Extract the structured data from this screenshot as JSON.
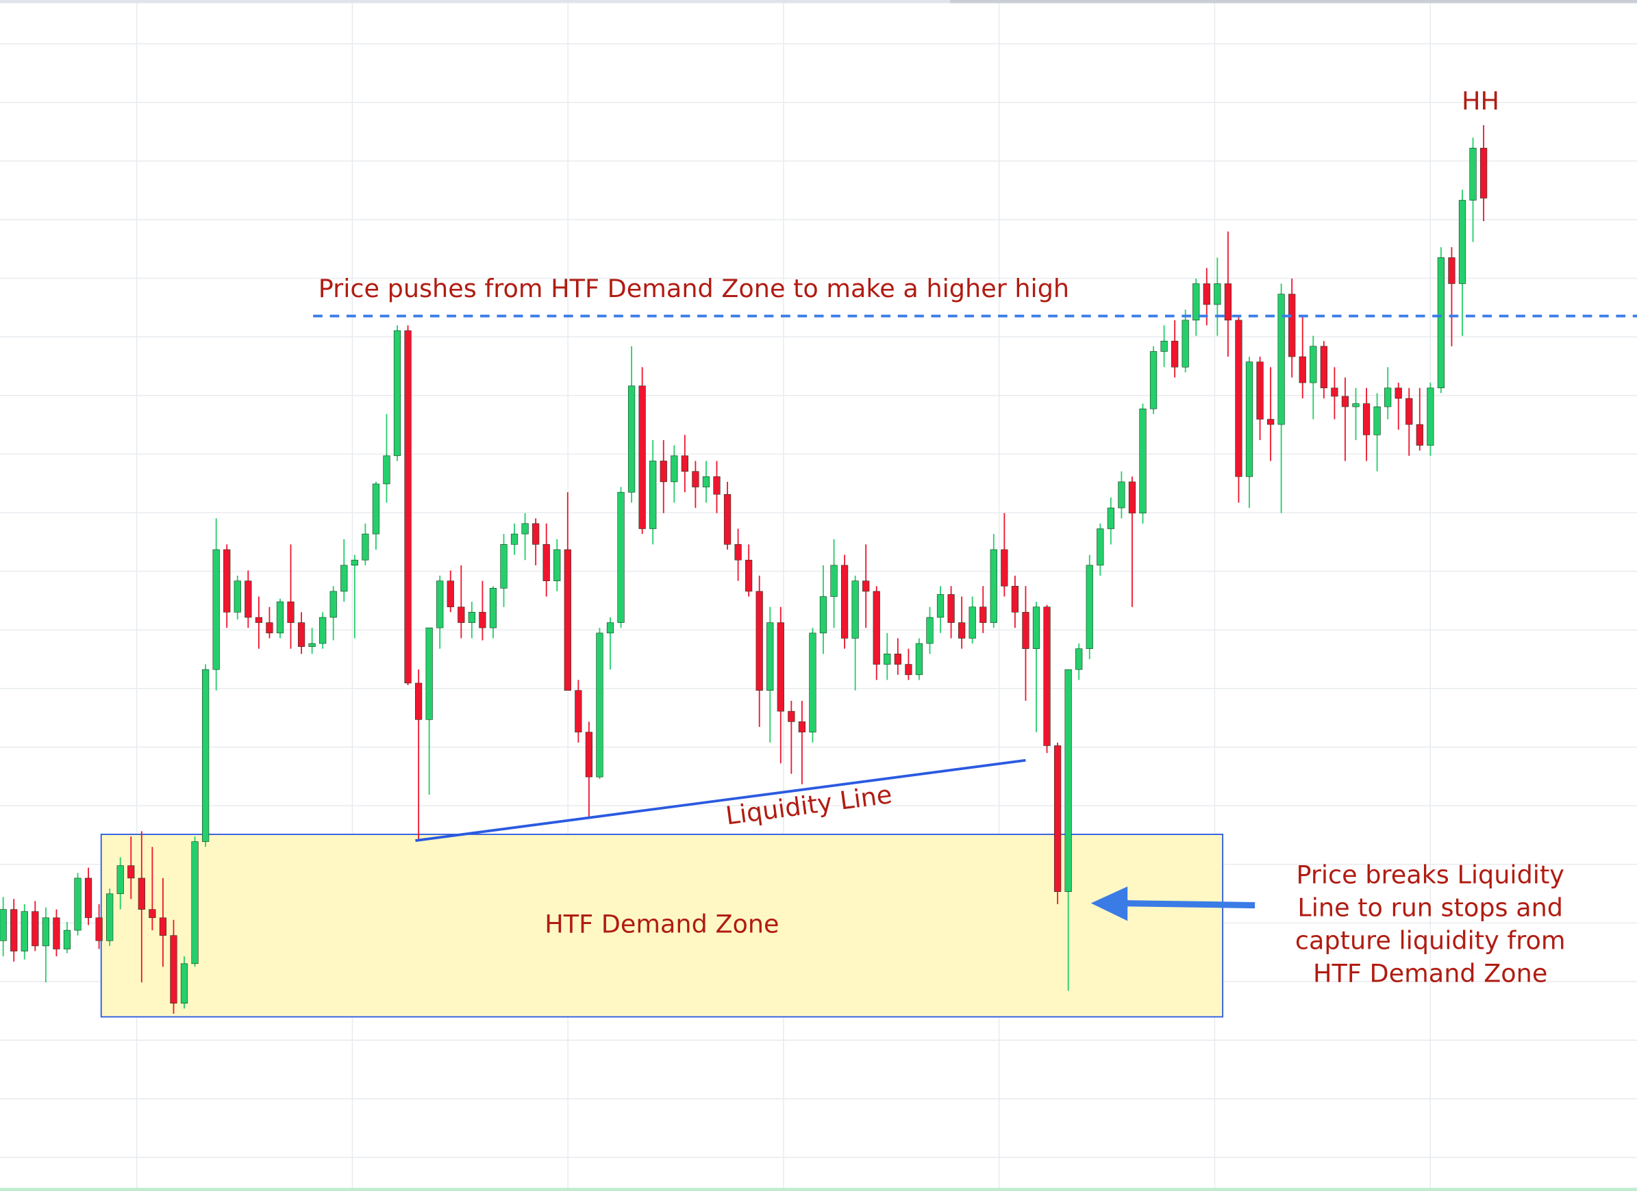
{
  "chart_data": {
    "type": "candlestick",
    "up_color": "#25cf6b",
    "down_color": "#f0152e",
    "ylim": [
      0,
      1142
    ],
    "xlim": [
      -0.3,
      153.4
    ],
    "grid": true,
    "candles": [
      [
        240,
        282,
        225,
        270
      ],
      [
        270,
        280,
        220,
        230
      ],
      [
        230,
        275,
        222,
        268
      ],
      [
        268,
        278,
        230,
        235
      ],
      [
        235,
        272,
        200,
        262
      ],
      [
        262,
        270,
        225,
        232
      ],
      [
        232,
        258,
        228,
        250
      ],
      [
        250,
        305,
        245,
        300
      ],
      [
        300,
        310,
        255,
        262
      ],
      [
        262,
        275,
        232,
        240
      ],
      [
        240,
        290,
        235,
        285
      ],
      [
        285,
        320,
        270,
        312
      ],
      [
        312,
        340,
        280,
        300
      ],
      [
        300,
        345,
        200,
        270
      ],
      [
        270,
        330,
        250,
        262
      ],
      [
        262,
        300,
        215,
        245
      ],
      [
        245,
        260,
        170,
        180
      ],
      [
        180,
        225,
        175,
        218
      ],
      [
        218,
        340,
        215,
        335
      ],
      [
        335,
        505,
        330,
        500
      ],
      [
        500,
        645,
        480,
        615
      ],
      [
        615,
        620,
        540,
        555
      ],
      [
        555,
        590,
        548,
        585
      ],
      [
        585,
        595,
        540,
        550
      ],
      [
        550,
        570,
        520,
        545
      ],
      [
        545,
        560,
        530,
        535
      ],
      [
        535,
        568,
        530,
        565
      ],
      [
        565,
        620,
        520,
        545
      ],
      [
        545,
        555,
        515,
        522
      ],
      [
        522,
        540,
        515,
        525
      ],
      [
        525,
        555,
        520,
        550
      ],
      [
        550,
        580,
        528,
        575
      ],
      [
        575,
        625,
        565,
        600
      ],
      [
        600,
        610,
        530,
        605
      ],
      [
        605,
        640,
        600,
        630
      ],
      [
        630,
        680,
        615,
        678
      ],
      [
        678,
        745,
        660,
        705
      ],
      [
        705,
        830,
        700,
        825
      ],
      [
        825,
        830,
        485,
        487
      ],
      [
        487,
        500,
        336,
        452
      ],
      [
        452,
        530,
        380,
        540
      ],
      [
        540,
        590,
        520,
        585
      ],
      [
        585,
        595,
        555,
        560
      ],
      [
        560,
        600,
        530,
        545
      ],
      [
        545,
        565,
        530,
        555
      ],
      [
        555,
        585,
        528,
        540
      ],
      [
        540,
        580,
        530,
        578
      ],
      [
        578,
        630,
        560,
        620
      ],
      [
        620,
        640,
        610,
        630
      ],
      [
        630,
        650,
        605,
        640
      ],
      [
        640,
        645,
        600,
        620
      ],
      [
        620,
        640,
        570,
        585
      ],
      [
        585,
        625,
        575,
        615
      ],
      [
        615,
        670,
        480,
        480
      ],
      [
        480,
        490,
        430,
        440
      ],
      [
        440,
        450,
        357,
        397
      ],
      [
        397,
        540,
        395,
        535
      ],
      [
        535,
        550,
        500,
        545
      ],
      [
        545,
        675,
        540,
        670
      ],
      [
        670,
        810,
        660,
        772
      ],
      [
        772,
        790,
        630,
        635
      ],
      [
        635,
        720,
        620,
        700
      ],
      [
        700,
        720,
        650,
        680
      ],
      [
        680,
        715,
        660,
        705
      ],
      [
        705,
        725,
        670,
        690
      ],
      [
        690,
        700,
        655,
        675
      ],
      [
        675,
        700,
        660,
        685
      ],
      [
        685,
        700,
        650,
        668
      ],
      [
        668,
        680,
        615,
        620
      ],
      [
        620,
        635,
        585,
        605
      ],
      [
        605,
        620,
        570,
        575
      ],
      [
        575,
        590,
        445,
        480
      ],
      [
        480,
        560,
        430,
        545
      ],
      [
        545,
        560,
        410,
        460
      ],
      [
        460,
        470,
        400,
        450
      ],
      [
        450,
        470,
        390,
        440
      ],
      [
        440,
        540,
        430,
        535
      ],
      [
        535,
        600,
        515,
        570
      ],
      [
        570,
        625,
        540,
        600
      ],
      [
        600,
        610,
        520,
        530
      ],
      [
        530,
        590,
        480,
        585
      ],
      [
        585,
        620,
        540,
        575
      ],
      [
        575,
        580,
        490,
        505
      ],
      [
        505,
        535,
        490,
        515
      ],
      [
        515,
        530,
        495,
        505
      ],
      [
        505,
        520,
        490,
        495
      ],
      [
        495,
        530,
        490,
        525
      ],
      [
        525,
        560,
        515,
        550
      ],
      [
        550,
        580,
        535,
        572
      ],
      [
        572,
        580,
        530,
        545
      ],
      [
        545,
        570,
        520,
        530
      ],
      [
        530,
        570,
        525,
        560
      ],
      [
        560,
        580,
        535,
        545
      ],
      [
        545,
        630,
        540,
        615
      ],
      [
        615,
        650,
        570,
        580
      ],
      [
        580,
        590,
        540,
        555
      ],
      [
        555,
        580,
        470,
        520
      ],
      [
        520,
        565,
        440,
        560
      ],
      [
        560,
        562,
        420,
        427
      ],
      [
        427,
        430,
        275,
        287
      ],
      [
        287,
        500,
        192,
        500
      ],
      [
        500,
        525,
        490,
        520
      ],
      [
        520,
        610,
        510,
        600
      ],
      [
        600,
        640,
        590,
        635
      ],
      [
        635,
        665,
        620,
        655
      ],
      [
        655,
        690,
        645,
        680
      ],
      [
        680,
        685,
        560,
        650
      ],
      [
        650,
        755,
        640,
        750
      ],
      [
        750,
        810,
        745,
        805
      ],
      [
        805,
        830,
        790,
        815
      ],
      [
        815,
        835,
        780,
        790
      ],
      [
        790,
        845,
        785,
        835
      ],
      [
        835,
        875,
        820,
        870
      ],
      [
        870,
        885,
        830,
        850
      ],
      [
        850,
        895,
        820,
        870
      ],
      [
        870,
        920,
        800,
        835
      ],
      [
        835,
        840,
        660,
        685
      ],
      [
        685,
        800,
        655,
        795
      ],
      [
        795,
        800,
        720,
        740
      ],
      [
        740,
        790,
        700,
        735
      ],
      [
        735,
        870,
        650,
        860
      ],
      [
        860,
        875,
        780,
        800
      ],
      [
        800,
        840,
        760,
        775
      ],
      [
        775,
        820,
        740,
        810
      ],
      [
        810,
        815,
        760,
        770
      ],
      [
        770,
        790,
        740,
        762
      ],
      [
        762,
        780,
        700,
        752
      ],
      [
        752,
        770,
        720,
        755
      ],
      [
        755,
        770,
        700,
        725
      ],
      [
        725,
        765,
        690,
        752
      ],
      [
        752,
        790,
        740,
        770
      ],
      [
        770,
        775,
        730,
        760
      ],
      [
        760,
        770,
        705,
        735
      ],
      [
        735,
        770,
        710,
        715
      ],
      [
        715,
        775,
        705,
        770
      ],
      [
        770,
        905,
        765,
        895
      ],
      [
        895,
        905,
        810,
        870
      ],
      [
        870,
        960,
        820,
        950
      ],
      [
        950,
        1010,
        910,
        1000
      ],
      [
        1000,
        1022,
        930,
        952
      ]
    ],
    "zone": {
      "label": "HTF Demand Zone",
      "low": 167,
      "high": 342,
      "start": 9.2,
      "end": 114.5
    },
    "level": {
      "label": "Price pushes from HTF Demand Zone to make a higher high",
      "value": 839,
      "start": 29.1
    },
    "liquidity_line": {
      "label": "Liquidity Line",
      "x": [
        38.7,
        96
      ],
      "values": [
        336,
        413
      ]
    },
    "peak_label": "HH",
    "note": [
      "Price breaks Liquidity",
      "Line to run stops and",
      "capture liquidity from",
      "HTF Demand Zone"
    ]
  }
}
